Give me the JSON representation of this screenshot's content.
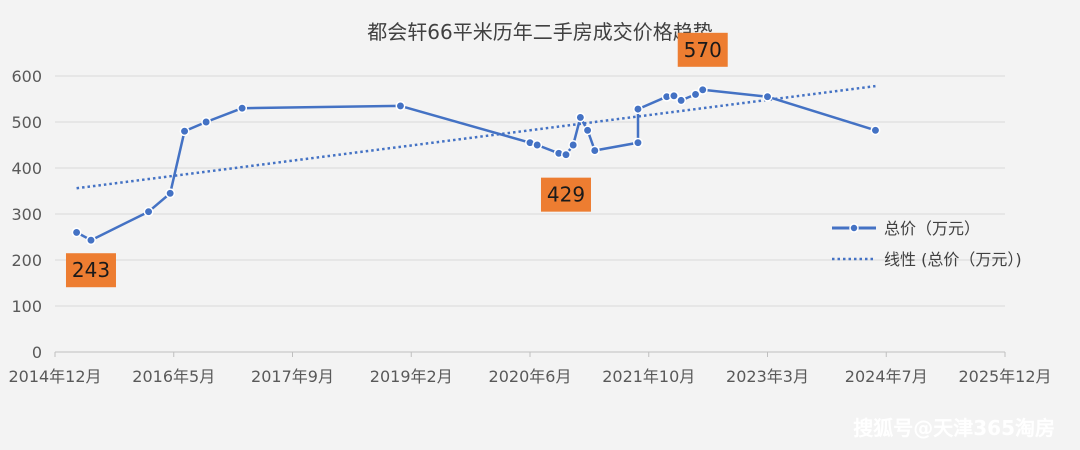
{
  "chart_data": {
    "type": "line",
    "title": "都会轩66平米历年二手房成交价格趋势",
    "ylim": [
      0,
      600
    ],
    "yticks": [
      0,
      100,
      200,
      300,
      400,
      500,
      600
    ],
    "xticks": [
      "2014年12月",
      "2016年5月",
      "2017年9月",
      "2019年2月",
      "2020年6月",
      "2021年10月",
      "2023年3月",
      "2024年7月",
      "2025年12月"
    ],
    "grid": true,
    "legend_position": "right",
    "series": [
      {
        "name": "总价（万元）",
        "color": "#4472c4",
        "style": "solid-with-markers",
        "x": [
          "2015-03",
          "2015-05",
          "2016-01",
          "2016-04",
          "2016-06",
          "2016-09",
          "2017-02",
          "2018-12",
          "2020-06",
          "2020-07",
          "2020-10",
          "2020-11",
          "2020-12",
          "2021-01",
          "2021-02",
          "2021-03",
          "2021-09",
          "2021-09",
          "2022-01",
          "2022-02",
          "2022-03",
          "2022-05",
          "2022-06",
          "2023-03",
          "2024-06"
        ],
        "values": [
          260,
          243,
          305,
          345,
          480,
          500,
          530,
          535,
          455,
          450,
          432,
          429,
          450,
          510,
          482,
          438,
          455,
          528,
          555,
          557,
          547,
          560,
          570,
          555,
          482
        ]
      },
      {
        "name": "线性 (总价（万元）)",
        "color": "#4472c4",
        "style": "dotted",
        "x": [
          "2015-03",
          "2024-06"
        ],
        "values": [
          356,
          578
        ]
      }
    ],
    "data_labels": [
      {
        "x": "2015-05",
        "value": 243,
        "text": "243"
      },
      {
        "x": "2020-11",
        "value": 429,
        "text": "429"
      },
      {
        "x": "2022-06",
        "value": 570,
        "text": "570"
      }
    ],
    "label_color": "#ed7d31"
  },
  "watermark": "搜狐号@天津365淘房"
}
